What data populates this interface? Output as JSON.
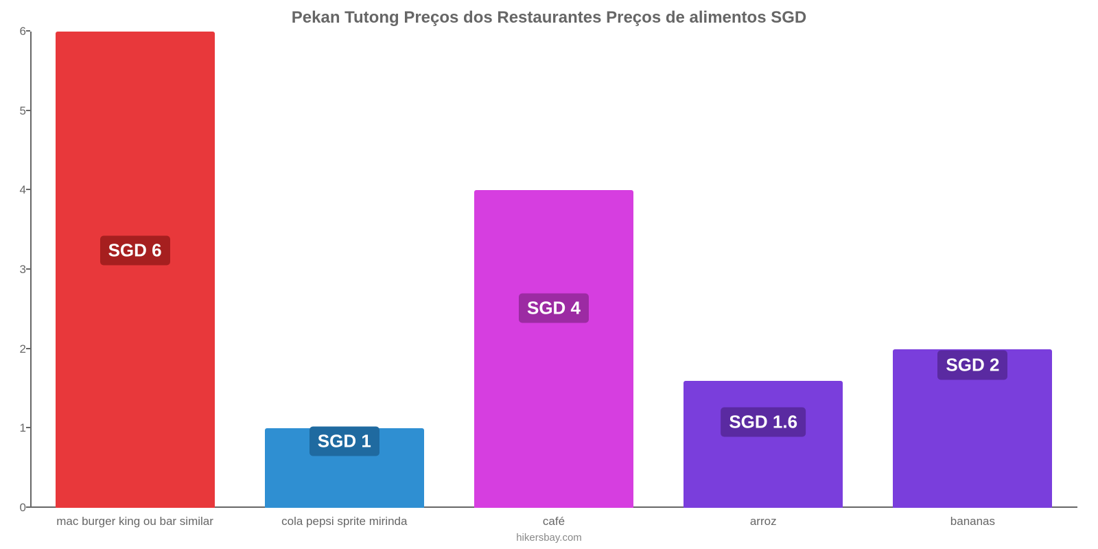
{
  "chart": {
    "type": "bar",
    "title": "Pekan Tutong Preços dos Restaurantes Preços de alimentos SGD",
    "title_fontsize": 24,
    "title_color": "#666666",
    "background_color": "#ffffff",
    "axis_color": "#666666",
    "label_color": "#666666",
    "xlabel_fontsize": 17,
    "ylim": [
      0,
      6
    ],
    "ytick_step": 1,
    "yticks": [
      0,
      1,
      2,
      3,
      4,
      5,
      6
    ],
    "bar_width_pct": 76,
    "value_label_fontsize": 26,
    "value_label_color": "#ffffff",
    "categories": [
      "mac burger king ou bar similar",
      "cola pepsi sprite mirinda",
      "café",
      "arroz",
      "bananas"
    ],
    "values": [
      6,
      1,
      4,
      1.6,
      2
    ],
    "value_labels": [
      "SGD 6",
      "SGD 1",
      "SGD 4",
      "SGD 1.6",
      "SGD 2"
    ],
    "bar_colors": [
      "#e8383b",
      "#2f8fd2",
      "#d63ee0",
      "#7a3edc",
      "#7a3edc"
    ],
    "badge_colors": [
      "#a61f1f",
      "#1f6aa0",
      "#9c2ba3",
      "#5a2aa1",
      "#5a2aa1"
    ],
    "badge_offsets": [
      "54%",
      "14%",
      "42%",
      "18%",
      "30%"
    ],
    "attribution": "hikersbay.com"
  }
}
